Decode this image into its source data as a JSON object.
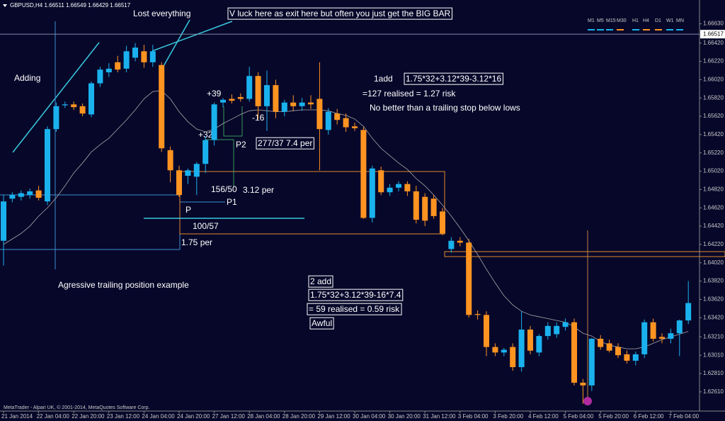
{
  "chart_data": {
    "type": "candlestick",
    "title": "GBPUSD,H4  1.66511 1.66549 1.66429 1.66517",
    "categories": [
      "21 Jan 2014",
      null,
      null,
      null,
      "22 Jan 04:00",
      null,
      null,
      null,
      "22 Jan 20:00",
      null,
      null,
      null,
      "23 Jan 12:00",
      null,
      null,
      null,
      "24 Jan 04:00",
      null,
      null,
      null,
      "24 Jan 20:00",
      null,
      null,
      null,
      "27 Jan 12:00",
      null,
      null,
      null,
      "28 Jan 04:00",
      null,
      null,
      null,
      "28 Jan 20:00",
      null,
      null,
      null,
      "29 Jan 12:00",
      null,
      null,
      null,
      "30 Jan 04:00",
      null,
      null,
      null,
      "30 Jan 20:00",
      null,
      null,
      null,
      "31 Jan 12:00",
      null,
      null,
      null,
      "3 Feb 04:00",
      null,
      null,
      null,
      "3 Feb 20:00",
      null,
      null,
      null,
      "4 Feb 12:00",
      null,
      null,
      null,
      "5 Feb 04:00",
      null,
      null,
      null,
      "5 Feb 20:00",
      null,
      null,
      null,
      "6 Feb 12:00",
      null,
      null,
      null,
      "7 Feb 04:00",
      null,
      null
    ],
    "ohlc": [
      [
        1.6426,
        1.6476,
        1.6399,
        1.6469
      ],
      [
        1.6472,
        1.6479,
        1.6468,
        1.6476
      ],
      [
        1.6474,
        1.6481,
        1.647,
        1.6478
      ],
      [
        1.6476,
        1.6483,
        1.6472,
        1.648
      ],
      [
        1.6481,
        1.6486,
        1.647,
        1.6473
      ],
      [
        1.6469,
        1.6551,
        1.6465,
        1.6548
      ],
      [
        1.6548,
        1.6577,
        1.6545,
        1.6573
      ],
      [
        1.6574,
        1.6578,
        1.6571,
        1.6575
      ],
      [
        1.6575,
        1.6578,
        1.6569,
        1.6572
      ],
      [
        1.6573,
        1.6576,
        1.6562,
        1.6565
      ],
      [
        1.6564,
        1.66,
        1.6561,
        1.6598
      ],
      [
        1.6598,
        1.6616,
        1.6594,
        1.6613
      ],
      [
        1.661,
        1.662,
        1.6605,
        1.6614
      ],
      [
        1.6621,
        1.6628,
        1.661,
        1.6613
      ],
      [
        1.6614,
        1.6639,
        1.661,
        1.6633
      ],
      [
        1.6626,
        1.6642,
        1.6622,
        1.6637
      ],
      [
        1.6633,
        1.664,
        1.6615,
        1.6621
      ],
      [
        1.6621,
        1.664,
        1.6616,
        1.6633
      ],
      [
        1.6618,
        1.6621,
        1.6523,
        1.6527
      ],
      [
        1.6525,
        1.6529,
        1.649,
        1.6503
      ],
      [
        1.6503,
        1.6508,
        1.6474,
        1.6476
      ],
      [
        1.6497,
        1.6505,
        1.6488,
        1.6503
      ],
      [
        1.6496,
        1.6512,
        1.6476,
        1.651
      ],
      [
        1.651,
        1.654,
        1.65,
        1.6536
      ],
      [
        1.6536,
        1.6577,
        1.653,
        1.6575
      ],
      [
        1.6577,
        1.6582,
        1.6572,
        1.658
      ],
      [
        1.6581,
        1.6586,
        1.6576,
        1.6579
      ],
      [
        1.6583,
        1.6587,
        1.6578,
        1.6581
      ],
      [
        1.6581,
        1.6616,
        1.6578,
        1.6606
      ],
      [
        1.6606,
        1.661,
        1.6559,
        1.6573
      ],
      [
        1.6573,
        1.6612,
        1.6546,
        1.6596
      ],
      [
        1.6596,
        1.6602,
        1.656,
        1.6567
      ],
      [
        1.6567,
        1.658,
        1.6562,
        1.6577
      ],
      [
        1.6577,
        1.6585,
        1.6568,
        1.6573
      ],
      [
        1.6573,
        1.6582,
        1.6568,
        1.6577
      ],
      [
        1.6577,
        1.6585,
        1.657,
        1.6575
      ],
      [
        1.6581,
        1.6621,
        1.6503,
        1.6548
      ],
      [
        1.6547,
        1.6571,
        1.6542,
        1.6567
      ],
      [
        1.6565,
        1.657,
        1.6553,
        1.6558
      ],
      [
        1.656,
        1.6565,
        1.6545,
        1.655
      ],
      [
        1.6551,
        1.6555,
        1.6546,
        1.6549
      ],
      [
        1.6547,
        1.655,
        1.645,
        1.6451
      ],
      [
        1.6451,
        1.6508,
        1.6446,
        1.6505
      ],
      [
        1.6503,
        1.6507,
        1.6476,
        1.6479
      ],
      [
        1.6479,
        1.6488,
        1.6475,
        1.6484
      ],
      [
        1.6484,
        1.6491,
        1.648,
        1.6488
      ],
      [
        1.6488,
        1.6491,
        1.6475,
        1.648
      ],
      [
        1.648,
        1.6486,
        1.6445,
        1.6449
      ],
      [
        1.6474,
        1.6478,
        1.6442,
        1.6448
      ],
      [
        1.6472,
        1.6476,
        1.645,
        1.6453
      ],
      [
        1.6458,
        1.6462,
        1.6432,
        1.6434
      ],
      [
        1.6417,
        1.643,
        1.6413,
        1.6426
      ],
      [
        1.6426,
        1.643,
        1.642,
        1.6424
      ],
      [
        1.6424,
        1.6428,
        1.6342,
        1.6345
      ],
      [
        1.6346,
        1.635,
        1.634,
        1.6345
      ],
      [
        1.6345,
        1.6349,
        1.63,
        1.631
      ],
      [
        1.631,
        1.6314,
        1.63,
        1.6304
      ],
      [
        1.6304,
        1.6309,
        1.63,
        1.6307
      ],
      [
        1.631,
        1.6314,
        1.6284,
        1.6288
      ],
      [
        1.6288,
        1.6349,
        1.6283,
        1.6329
      ],
      [
        1.6329,
        1.6333,
        1.6302,
        1.6306
      ],
      [
        1.6304,
        1.6324,
        1.63,
        1.6322
      ],
      [
        1.6322,
        1.6337,
        1.6318,
        1.6333
      ],
      [
        1.6324,
        1.6337,
        1.632,
        1.6333
      ],
      [
        1.6332,
        1.6341,
        1.6328,
        1.6337
      ],
      [
        1.6337,
        1.6341,
        1.6268,
        1.6271
      ],
      [
        1.6271,
        1.6275,
        1.6248,
        1.6268
      ],
      [
        1.6268,
        1.632,
        1.6262,
        1.6319
      ],
      [
        1.6319,
        1.6323,
        1.6307,
        1.631
      ],
      [
        1.6314,
        1.6318,
        1.6304,
        1.6306
      ],
      [
        1.631,
        1.6314,
        1.6298,
        1.6301
      ],
      [
        1.6302,
        1.6306,
        1.6292,
        1.6295
      ],
      [
        1.6295,
        1.6305,
        1.629,
        1.6302
      ],
      [
        1.6302,
        1.634,
        1.6298,
        1.6337
      ],
      [
        1.6337,
        1.6341,
        1.6316,
        1.6319
      ],
      [
        1.6321,
        1.6325,
        1.6314,
        1.6319
      ],
      [
        1.6319,
        1.633,
        1.6314,
        1.6325
      ],
      [
        1.6325,
        1.634,
        1.63,
        1.6339
      ],
      [
        1.6339,
        1.6382,
        1.6335,
        1.6358
      ]
    ],
    "up_color": "#1ab2ee",
    "down_color": "#ff9421",
    "ma": {
      "color": "#a8a8a8",
      "values": [
        1.6422,
        1.6428,
        1.6434,
        1.6442,
        1.6453,
        1.6462,
        1.6473,
        1.6486,
        1.65,
        1.6511,
        1.6523,
        1.6531,
        1.6538,
        1.6548,
        1.6558,
        1.6569,
        1.6581,
        1.6589,
        1.659,
        1.6581,
        1.6567,
        1.6556,
        1.6548,
        1.6545,
        1.6548,
        1.6554,
        1.6559,
        1.6564,
        1.6568,
        1.6569,
        1.6568,
        1.6567,
        1.6567,
        1.6568,
        1.6569,
        1.6569,
        1.6569,
        1.6568,
        1.6565,
        1.6563,
        1.6559,
        1.6551,
        1.6538,
        1.6527,
        1.6519,
        1.6511,
        1.6504,
        1.6494,
        1.6486,
        1.6476,
        1.6465,
        1.6453,
        1.644,
        1.6426,
        1.6411,
        1.6395,
        1.638,
        1.6366,
        1.6356,
        1.6349,
        1.6345,
        1.6343,
        1.6341,
        1.6339,
        1.6337,
        1.6332,
        1.6325,
        1.6322,
        1.6316,
        1.6312,
        1.631,
        1.6308,
        1.6308,
        1.631,
        1.6314,
        1.6318,
        1.6321,
        1.6324,
        1.6327
      ]
    },
    "ylim": [
      1.624,
      1.6689
    ],
    "yticks": [
      {
        "value": 1.6663,
        "label": "1.66630"
      },
      {
        "value": 1.6642,
        "label": "1.66420"
      },
      {
        "value": 1.6622,
        "label": "1.66220"
      },
      {
        "value": 1.6602,
        "label": "1.66020"
      },
      {
        "value": 1.6582,
        "label": "1.65820"
      },
      {
        "value": 1.6562,
        "label": "1.65620"
      },
      {
        "value": 1.6542,
        "label": "1.65420"
      },
      {
        "value": 1.6522,
        "label": "1.65220"
      },
      {
        "value": 1.6502,
        "label": "1.65020"
      },
      {
        "value": 1.6482,
        "label": "1.64820"
      },
      {
        "value": 1.6462,
        "label": "1.64620"
      },
      {
        "value": 1.6442,
        "label": "1.64420"
      },
      {
        "value": 1.6422,
        "label": "1.64220"
      },
      {
        "value": 1.6402,
        "label": "1.64020"
      },
      {
        "value": 1.6382,
        "label": "1.63820"
      },
      {
        "value": 1.6362,
        "label": "1.63620"
      },
      {
        "value": 1.6342,
        "label": "1.63420"
      },
      {
        "value": 1.6321,
        "label": "1.63210"
      },
      {
        "value": 1.6301,
        "label": "1.63010"
      },
      {
        "value": 1.6281,
        "label": "1.62810"
      },
      {
        "value": 1.6261,
        "label": "1.62610"
      }
    ],
    "current_price": {
      "value": 1.66517,
      "label": "1.66517"
    },
    "timeframes": [
      "M1",
      "M5",
      "M15",
      "M30",
      "H1",
      "H4",
      "D1",
      "W1",
      "MN"
    ],
    "annotations": [
      "Lost everything",
      "V luck here as exit here but often you just get the BIG BAR",
      "Adding",
      "+39",
      "+32",
      "-16",
      "P2",
      "277/37 7.4 per",
      "156/50",
      "3.12 per",
      "P1",
      "P",
      "100/57",
      "1.75 per",
      "Agressive trailing position example",
      "1add",
      "1.75*32+3.12*39-3.12*16",
      "=127 realised = 1.27 risk",
      "No better than a trailing stop below lows",
      "2 add",
      "1.75*32+3.12*39-16*7.4",
      "= 59  realised = 0.59 risk",
      "Awful"
    ],
    "footer": "MetaTrader - Alpari UK, © 2001-2014, MetaQuotes Software Corp."
  }
}
